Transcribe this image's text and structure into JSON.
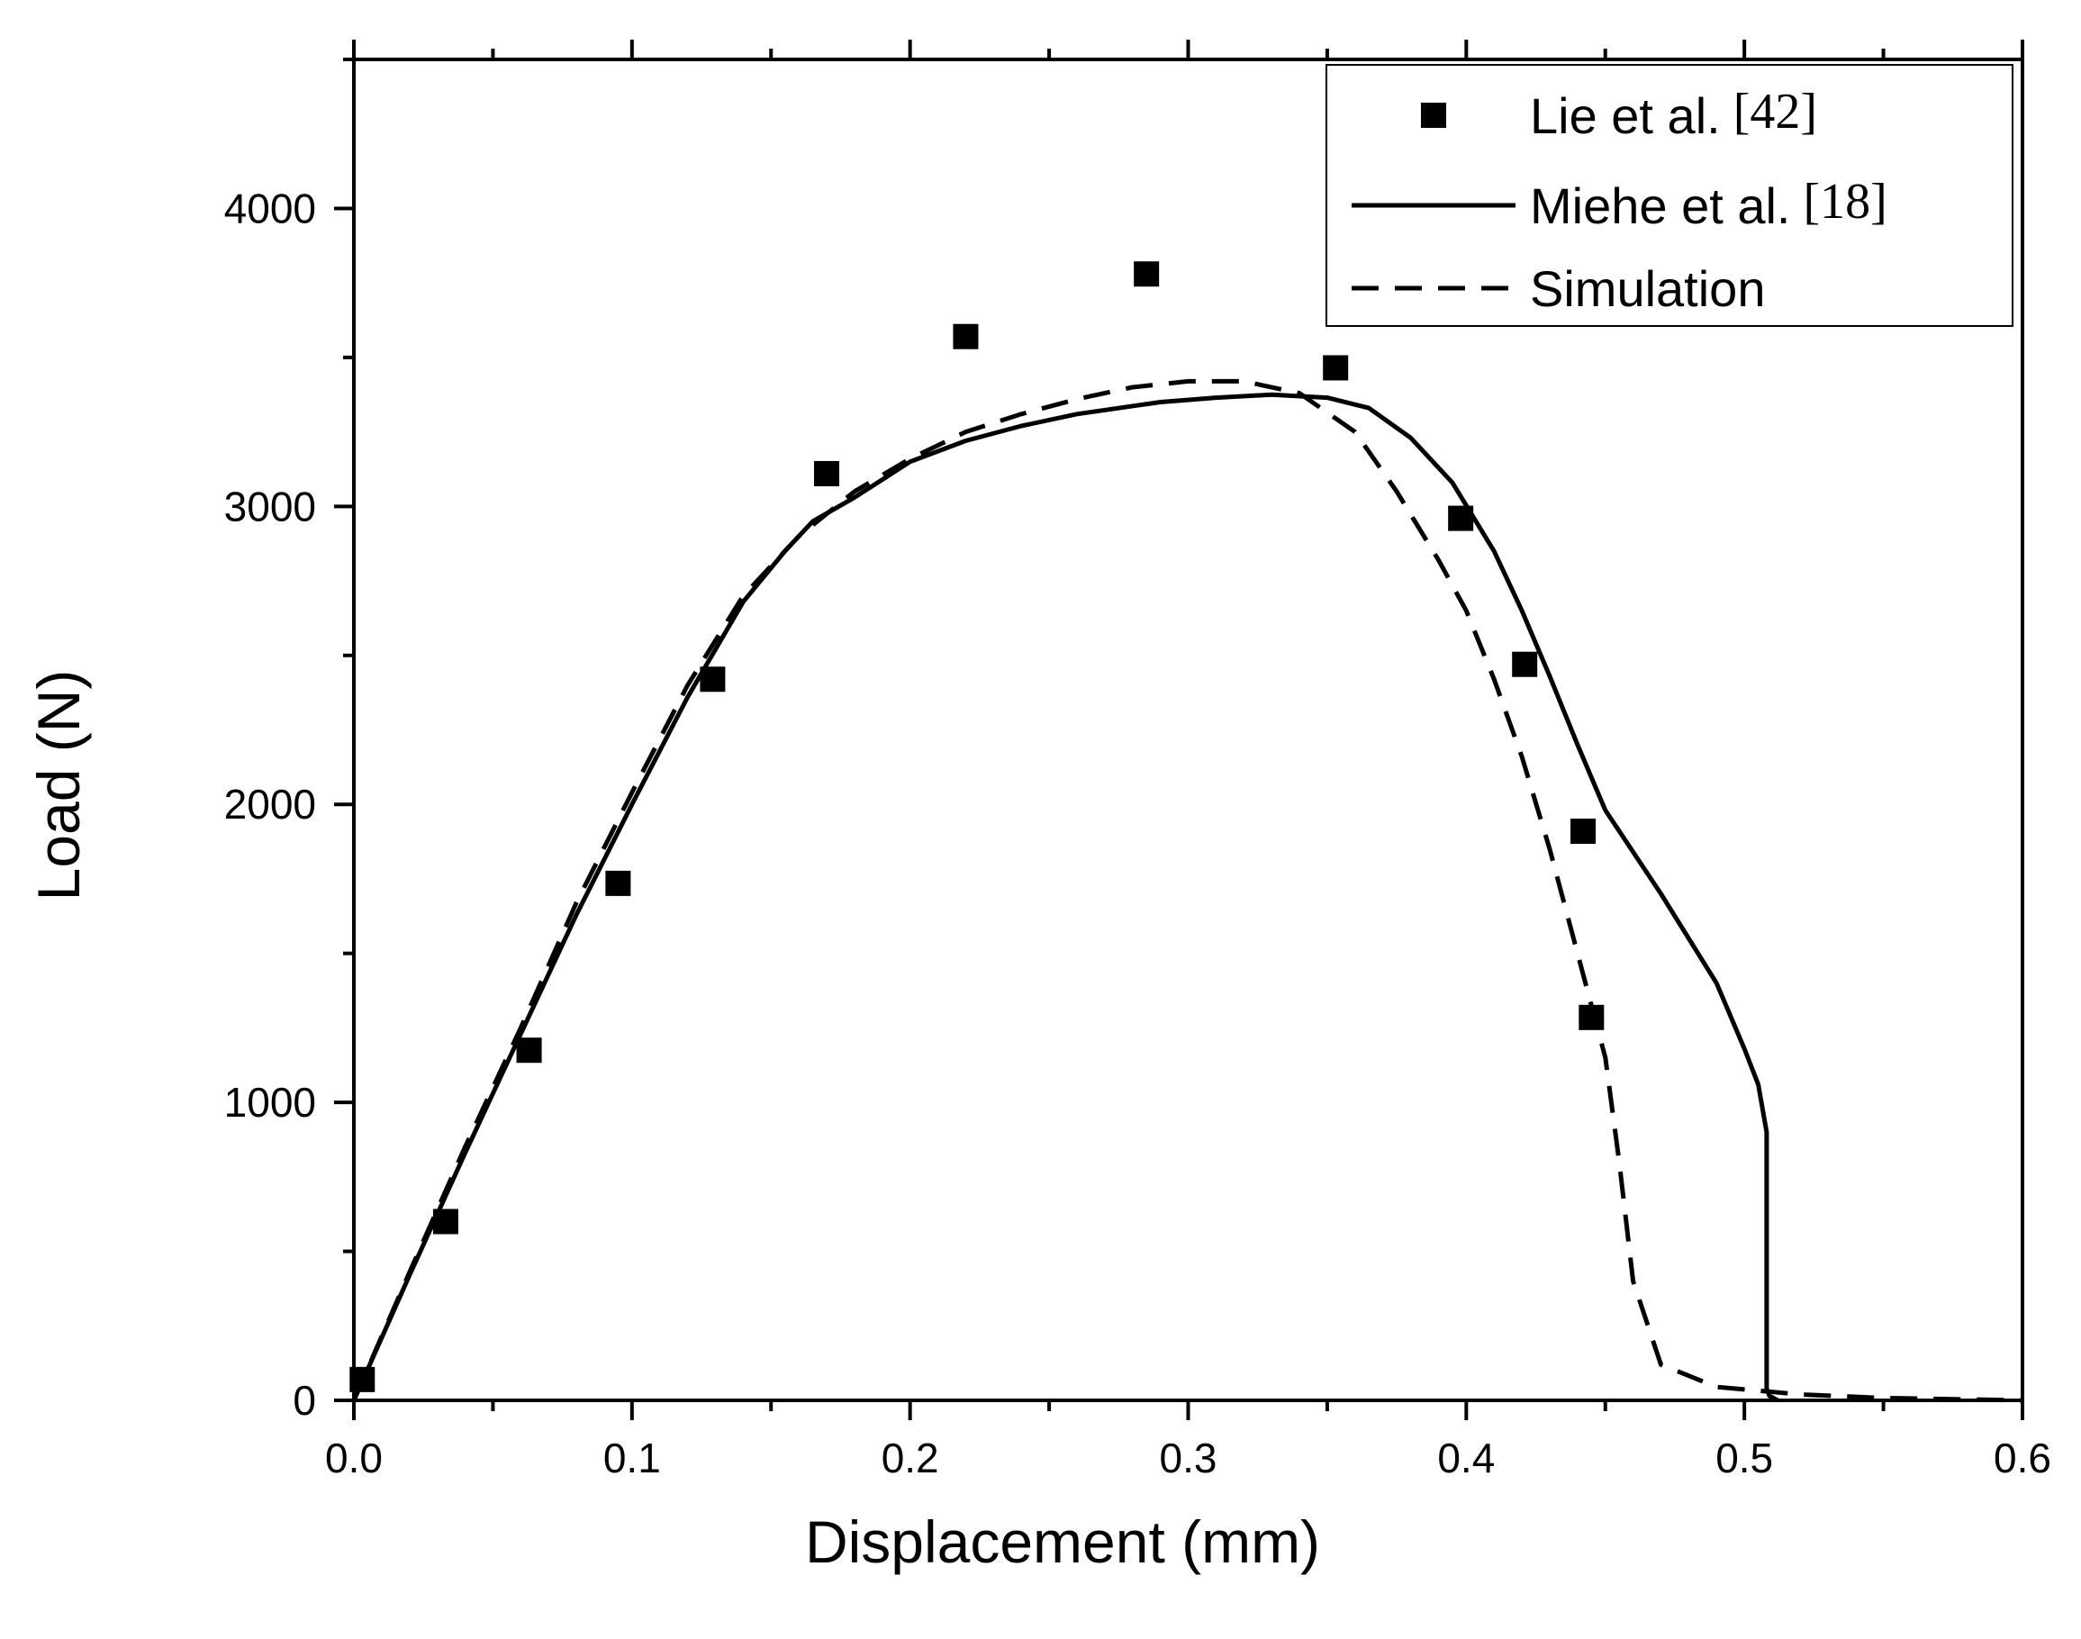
{
  "chart_data": {
    "type": "line",
    "title": "",
    "xlabel": "Displacement (mm)",
    "ylabel": "Load (N)",
    "xlim": [
      0.0,
      0.6
    ],
    "ylim": [
      0,
      4500
    ],
    "xticks": [
      0.0,
      0.1,
      0.2,
      0.3,
      0.4,
      0.5,
      0.6
    ],
    "xtick_labels": [
      "0.0",
      "0.1",
      "0.2",
      "0.3",
      "0.4",
      "0.5",
      "0.6"
    ],
    "yticks": [
      0,
      1000,
      2000,
      3000,
      4000
    ],
    "ytick_labels": [
      "0",
      "1000",
      "2000",
      "3000",
      "4000"
    ],
    "grid": false,
    "legend_position": "top-right",
    "series": [
      {
        "name": "Lie et al.",
        "ref": "[42]",
        "style": "square-markers",
        "color": "#000000",
        "x": [
          0.003,
          0.033,
          0.063,
          0.095,
          0.129,
          0.17,
          0.22,
          0.285,
          0.353,
          0.398,
          0.421,
          0.442,
          0.445
        ],
        "y": [
          70,
          600,
          1175,
          1735,
          2420,
          3110,
          3570,
          3780,
          3465,
          2960,
          2470,
          1910,
          1285
        ]
      },
      {
        "name": "Miehe et al.",
        "ref": "[18]",
        "style": "solid-line",
        "color": "#000000",
        "x": [
          0.0,
          0.02,
          0.04,
          0.06,
          0.08,
          0.1,
          0.12,
          0.14,
          0.155,
          0.165,
          0.18,
          0.19,
          0.2,
          0.22,
          0.24,
          0.26,
          0.29,
          0.31,
          0.33,
          0.35,
          0.365,
          0.38,
          0.395,
          0.41,
          0.42,
          0.43,
          0.44,
          0.45,
          0.47,
          0.49,
          0.5,
          0.505,
          0.508,
          0.508,
          0.509,
          0.512
        ],
        "y": [
          0,
          420,
          830,
          1230,
          1630,
          2000,
          2360,
          2680,
          2850,
          2950,
          3030,
          3090,
          3150,
          3220,
          3270,
          3310,
          3350,
          3365,
          3375,
          3365,
          3330,
          3230,
          3080,
          2850,
          2650,
          2430,
          2200,
          1980,
          1700,
          1400,
          1180,
          1060,
          900,
          40,
          15,
          0
        ]
      },
      {
        "name": "Simulation",
        "ref": "",
        "style": "dashed-line",
        "color": "#000000",
        "x": [
          0.0,
          0.02,
          0.04,
          0.06,
          0.08,
          0.1,
          0.12,
          0.14,
          0.16,
          0.18,
          0.2,
          0.22,
          0.24,
          0.26,
          0.28,
          0.3,
          0.32,
          0.34,
          0.36,
          0.375,
          0.39,
          0.4,
          0.41,
          0.42,
          0.43,
          0.44,
          0.45,
          0.455,
          0.46,
          0.47,
          0.49,
          0.52,
          0.55,
          0.6
        ],
        "y": [
          0,
          430,
          850,
          1250,
          1670,
          2040,
          2400,
          2700,
          2900,
          3050,
          3160,
          3250,
          3310,
          3360,
          3400,
          3420,
          3420,
          3380,
          3250,
          3050,
          2820,
          2650,
          2420,
          2160,
          1850,
          1500,
          1150,
          800,
          400,
          120,
          45,
          20,
          8,
          0
        ]
      }
    ]
  }
}
